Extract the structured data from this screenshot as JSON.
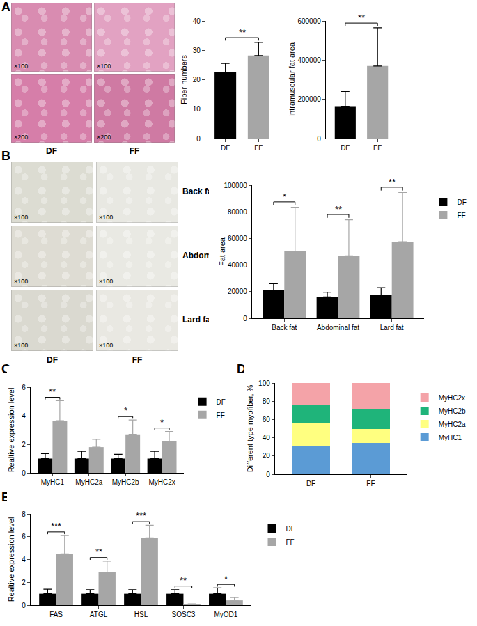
{
  "figure": {
    "panel_labels": [
      "A",
      "B",
      "C",
      "D",
      "E"
    ],
    "micrographs": [
      {
        "columns": [
          "DF",
          "FF"
        ],
        "rows": [
          {
            "magnifications": [
              "×100",
              "×100"
            ]
          },
          {
            "magnifications": [
              "×200",
              "×200"
            ]
          }
        ]
      },
      {
        "columns": [
          "DF",
          "FF"
        ],
        "rows": [
          {
            "label": "Back fat",
            "magnifications": [
              "×100",
              "×100"
            ]
          },
          {
            "label": "Abdominal fat",
            "magnifications": [
              "×100",
              "×100"
            ]
          },
          {
            "label": "Lard fat",
            "magnifications": [
              "×100",
              "×100"
            ]
          }
        ]
      }
    ]
  },
  "chart_data": [
    {
      "type": "bar",
      "ylabel": "Fiber numbers",
      "categories": [
        "DF",
        "FF"
      ],
      "values": [
        22.5,
        28.2
      ],
      "errors": [
        3,
        4.5
      ],
      "colors": [
        "#000000",
        "#a6a6a6"
      ],
      "ylim": [
        0,
        40
      ],
      "yticks": [
        0,
        10,
        20,
        30,
        40
      ],
      "grid": false,
      "significance": "**"
    },
    {
      "type": "bar",
      "ylabel": "Intramuscular fat area",
      "categories": [
        "DF",
        "FF"
      ],
      "values": [
        165000,
        370000
      ],
      "errors": [
        75000,
        195000
      ],
      "colors": [
        "#000000",
        "#a6a6a6"
      ],
      "ylim": [
        0,
        600000
      ],
      "yticks": [
        0,
        200000,
        400000,
        600000
      ],
      "grid": false,
      "significance": "**"
    },
    {
      "type": "bar",
      "ylabel": "Fat area",
      "categories": [
        "Back fat",
        "Abdominal fat",
        "Lard fat"
      ],
      "series": [
        {
          "name": "DF",
          "color": "#000000",
          "values": [
            21000,
            16000,
            17500
          ],
          "errors": [
            5000,
            3500,
            5500
          ]
        },
        {
          "name": "FF",
          "color": "#a6a6a6",
          "values": [
            50500,
            47000,
            57500
          ],
          "errors": [
            33000,
            27000,
            37000
          ]
        }
      ],
      "ylim": [
        0,
        100000
      ],
      "yticks": [
        0,
        20000,
        40000,
        60000,
        80000,
        100000
      ],
      "grid": false,
      "legend": "right",
      "significance": [
        "*",
        "**",
        "**"
      ]
    },
    {
      "type": "bar",
      "ylabel": "Realtive expression level",
      "categories": [
        "MyHC1",
        "MyHC2a",
        "MyHC2b",
        "MyHC2x"
      ],
      "series": [
        {
          "name": "DF",
          "color": "#000000",
          "values": [
            1,
            1,
            1,
            1
          ],
          "errors": [
            0.35,
            0.5,
            0.3,
            0.5
          ]
        },
        {
          "name": "FF",
          "color": "#a6a6a6",
          "values": [
            3.65,
            1.8,
            2.7,
            2.2
          ],
          "errors": [
            1.4,
            0.55,
            1.0,
            0.7
          ]
        }
      ],
      "ylim": [
        0,
        6
      ],
      "yticks": [
        0,
        2,
        4,
        6
      ],
      "grid": false,
      "legend": "right",
      "significance": [
        "**",
        null,
        "*",
        "*"
      ]
    },
    {
      "type": "bar",
      "ylabel": "Different type myofiber, %",
      "categories": [
        "DF",
        "FF"
      ],
      "stacked": true,
      "series": [
        {
          "name": "MyHC1",
          "color": "#5b9bd5",
          "values": [
            31,
            34
          ]
        },
        {
          "name": "MyHC2a",
          "color": "#ffff80",
          "values": [
            25,
            16
          ]
        },
        {
          "name": "MyHC2b",
          "color": "#1fb47a",
          "values": [
            20,
            21
          ]
        },
        {
          "name": "MyHC2x",
          "color": "#f4a3a8",
          "values": [
            24,
            29
          ]
        }
      ],
      "ylim": [
        0,
        100
      ],
      "yticks": [
        0,
        20,
        40,
        60,
        80,
        100
      ],
      "grid": false,
      "legend": "right"
    },
    {
      "type": "bar",
      "ylabel": "Realtive expression level",
      "categories": [
        "FAS",
        "ATGL",
        "HSL",
        "SOSC3",
        "MyOD1"
      ],
      "series": [
        {
          "name": "DF",
          "color": "#000000",
          "values": [
            1,
            1,
            1,
            1,
            1
          ],
          "errors": [
            0.4,
            0.35,
            0.35,
            0.35,
            0.5
          ]
        },
        {
          "name": "FF",
          "color": "#a6a6a6",
          "values": [
            4.5,
            2.9,
            5.9,
            0.08,
            0.42
          ],
          "errors": [
            1.6,
            0.95,
            1.1,
            0.03,
            0.25
          ]
        }
      ],
      "ylim": [
        0,
        8
      ],
      "yticks": [
        0,
        2,
        4,
        6,
        8
      ],
      "grid": false,
      "legend": "right",
      "significance": [
        "***",
        "**",
        "***",
        "**",
        "*"
      ]
    }
  ]
}
